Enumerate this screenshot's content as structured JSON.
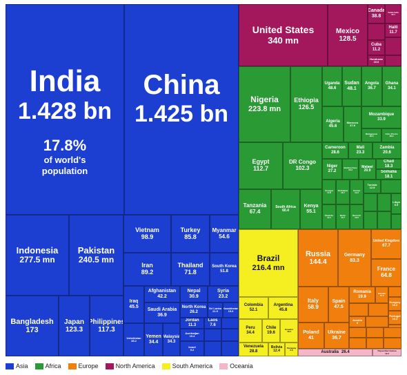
{
  "chart_data": {
    "type": "treemap",
    "title": "",
    "colors": {
      "Asia": "#1d3fd1",
      "Africa": "#2a9a35",
      "Europe": "#f07f0e",
      "North America": "#a3185c",
      "South America": "#f5ef22",
      "Oceania": "#f5b6c8"
    },
    "legend": [
      "Asia",
      "Africa",
      "Europe",
      "North America",
      "South America",
      "Oceania"
    ],
    "extras": {
      "india_share": "17.8%",
      "india_share_line2": "of world's",
      "india_share_line3": "population"
    },
    "items": [
      {
        "name": "India",
        "value": "1.428 bn",
        "region": "Asia"
      },
      {
        "name": "China",
        "value": "1.425 bn",
        "region": "Asia"
      },
      {
        "name": "Indonesia",
        "value": "277.5 mn",
        "region": "Asia"
      },
      {
        "name": "Pakistan",
        "value": "240.5 mn",
        "region": "Asia"
      },
      {
        "name": "Bangladesh",
        "value": "173",
        "region": "Asia"
      },
      {
        "name": "Japan",
        "value": "123.3",
        "region": "Asia"
      },
      {
        "name": "Philippines",
        "value": "117.3",
        "region": "Asia"
      },
      {
        "name": "Vietnam",
        "value": "98.9",
        "region": "Asia"
      },
      {
        "name": "Turkey",
        "value": "85.8",
        "region": "Asia"
      },
      {
        "name": "Myanmar",
        "value": "54.6",
        "region": "Asia"
      },
      {
        "name": "Iran",
        "value": "89.2",
        "region": "Asia"
      },
      {
        "name": "Thailand",
        "value": "71.8",
        "region": "Asia"
      },
      {
        "name": "South Korea",
        "value": "51.8",
        "region": "Asia"
      },
      {
        "name": "Iraq",
        "value": "45.5",
        "region": "Asia"
      },
      {
        "name": "Afghanistan",
        "value": "42.2",
        "region": "Asia"
      },
      {
        "name": "Nepal",
        "value": "30.9",
        "region": "Asia"
      },
      {
        "name": "Syria",
        "value": "23.2",
        "region": "Asia"
      },
      {
        "name": "Saudi Arabia",
        "value": "36.9",
        "region": "Asia"
      },
      {
        "name": "North Korea",
        "value": "26.2",
        "region": "Asia"
      },
      {
        "name": "Sri Lanka",
        "value": "21.9",
        "region": "Asia"
      },
      {
        "name": "Kazakhstan",
        "value": "19.6",
        "region": "Asia"
      },
      {
        "name": "Jordan",
        "value": "11.3",
        "region": "Asia"
      },
      {
        "name": "Laos",
        "value": "7.6",
        "region": "Asia"
      },
      {
        "name": "Azerbaijan",
        "value": "10.4",
        "region": "Asia"
      },
      {
        "name": "Uzbekistan",
        "value": "35.2",
        "region": "Asia"
      },
      {
        "name": "Yemen",
        "value": "34.4",
        "region": "Asia"
      },
      {
        "name": "Malaysia",
        "value": "34.3",
        "region": "Asia"
      },
      {
        "name": "Israel",
        "value": "9.2",
        "region": "Asia"
      },
      {
        "name": "United States",
        "value": "340 mn",
        "region": "North America"
      },
      {
        "name": "Mexico",
        "value": "128.5",
        "region": "North America"
      },
      {
        "name": "Canada",
        "value": "38.8",
        "region": "North America"
      },
      {
        "name": "Guatemala",
        "value": "18.1",
        "region": "North America"
      },
      {
        "name": "Haiti",
        "value": "11.7",
        "region": "North America"
      },
      {
        "name": "Cuba",
        "value": "11.2",
        "region": "North America"
      },
      {
        "name": "Honduras",
        "value": "10.6",
        "region": "North America"
      },
      {
        "name": "Nigeria",
        "value": "223.8 mn",
        "region": "Africa"
      },
      {
        "name": "Ethiopia",
        "value": "126.5",
        "region": "Africa"
      },
      {
        "name": "Uganda",
        "value": "48.6",
        "region": "Africa"
      },
      {
        "name": "Sudan",
        "value": "48.1",
        "region": "Africa"
      },
      {
        "name": "Angola",
        "value": "36.7",
        "region": "Africa"
      },
      {
        "name": "Ghana",
        "value": "34.1",
        "region": "Africa"
      },
      {
        "name": "Mozambique",
        "value": "33.9",
        "region": "Africa"
      },
      {
        "name": "Algeria",
        "value": "45.6",
        "region": "Africa"
      },
      {
        "name": "Morocco",
        "value": "37.8",
        "region": "Africa"
      },
      {
        "name": "Madagascar",
        "value": "30.3",
        "region": "Africa"
      },
      {
        "name": "Côte d'Ivoire",
        "value": "28.9",
        "region": "Africa"
      },
      {
        "name": "Egypt",
        "value": "112.7",
        "region": "Africa"
      },
      {
        "name": "DR Congo",
        "value": "102.3",
        "region": "Africa"
      },
      {
        "name": "Cameroon",
        "value": "28.6",
        "region": "Africa"
      },
      {
        "name": "Mali",
        "value": "23.3",
        "region": "Africa"
      },
      {
        "name": "Zambia",
        "value": "20.6",
        "region": "Africa"
      },
      {
        "name": "Niger",
        "value": "27.2",
        "region": "Africa"
      },
      {
        "name": "Burkina Faso",
        "value": "23.3",
        "region": "Africa"
      },
      {
        "name": "Malawi",
        "value": "20.9",
        "region": "Africa"
      },
      {
        "name": "Chad",
        "value": "18.3",
        "region": "Africa"
      },
      {
        "name": "Somalia",
        "value": "18.1",
        "region": "Africa"
      },
      {
        "name": "Tanzania",
        "value": "67.4",
        "region": "Africa"
      },
      {
        "name": "South Africa",
        "value": "60.4",
        "region": "Africa"
      },
      {
        "name": "Kenya",
        "value": "55.1",
        "region": "Africa"
      },
      {
        "name": "Senegal",
        "value": "17.8",
        "region": "Africa"
      },
      {
        "name": "Zimbabwe",
        "value": "16.7",
        "region": "Africa"
      },
      {
        "name": "Guinea",
        "value": "14.2",
        "region": "Africa"
      },
      {
        "name": "Tunisia",
        "value": "12.5",
        "region": "Africa"
      },
      {
        "name": "Rwanda",
        "value": "14.1",
        "region": "Africa"
      },
      {
        "name": "Benin",
        "value": "13.7",
        "region": "Africa"
      },
      {
        "name": "Burundi",
        "value": "13.2",
        "region": "Africa"
      },
      {
        "name": "Libya",
        "value": "6.9",
        "region": "Africa"
      },
      {
        "name": "Brazil",
        "value": "216.4 mn",
        "region": "South America"
      },
      {
        "name": "Colombia",
        "value": "52.1",
        "region": "South America"
      },
      {
        "name": "Argentina",
        "value": "45.8",
        "region": "South America"
      },
      {
        "name": "Peru",
        "value": "34.4",
        "region": "South America"
      },
      {
        "name": "Chile",
        "value": "19.6",
        "region": "South America"
      },
      {
        "name": "Ecuador",
        "value": "18.2",
        "region": "South America"
      },
      {
        "name": "Venezuela",
        "value": "28.8",
        "region": "South America"
      },
      {
        "name": "Bolivia",
        "value": "12.4",
        "region": "South America"
      },
      {
        "name": "Paraguay",
        "value": "6.9",
        "region": "South America"
      },
      {
        "name": "Russia",
        "value": "144.4",
        "region": "Europe"
      },
      {
        "name": "Germany",
        "value": "83.3",
        "region": "Europe"
      },
      {
        "name": "United Kingdom",
        "value": "67.7",
        "region": "Europe"
      },
      {
        "name": "France",
        "value": "64.8",
        "region": "Europe"
      },
      {
        "name": "Italy",
        "value": "58.9",
        "region": "Europe"
      },
      {
        "name": "Spain",
        "value": "47.5",
        "region": "Europe"
      },
      {
        "name": "Romania",
        "value": "19.9",
        "region": "Europe"
      },
      {
        "name": "Sweden",
        "value": "10.6",
        "region": "Europe"
      },
      {
        "name": "Poland",
        "value": "41",
        "region": "Europe"
      },
      {
        "name": "Ukraine",
        "value": "36.7",
        "region": "Europe"
      },
      {
        "name": "Hungary",
        "value": "10.2",
        "region": "Europe"
      },
      {
        "name": "Portugal",
        "value": "10.2",
        "region": "Europe"
      },
      {
        "name": "Austria",
        "value": "9",
        "region": "Europe"
      },
      {
        "name": "Australia",
        "value": "26.4",
        "region": "Oceania"
      },
      {
        "name": "Papua New Guinea",
        "value": "10.3",
        "region": "Oceania"
      }
    ]
  }
}
